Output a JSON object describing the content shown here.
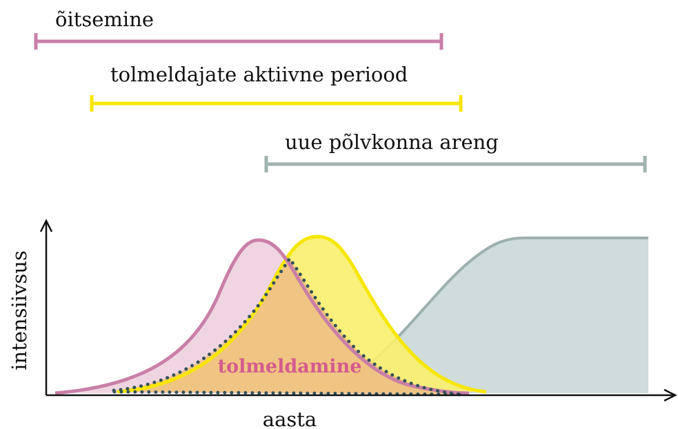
{
  "ranges": [
    {
      "label": "õitsemine"
    },
    {
      "label": "tolmeldajate aktiivne periood"
    },
    {
      "label": "uue põlvkonna areng"
    }
  ],
  "overlap_label": "tolmeldamine",
  "axes": {
    "x_label": "aasta",
    "y_label": "intensiivsus"
  }
}
